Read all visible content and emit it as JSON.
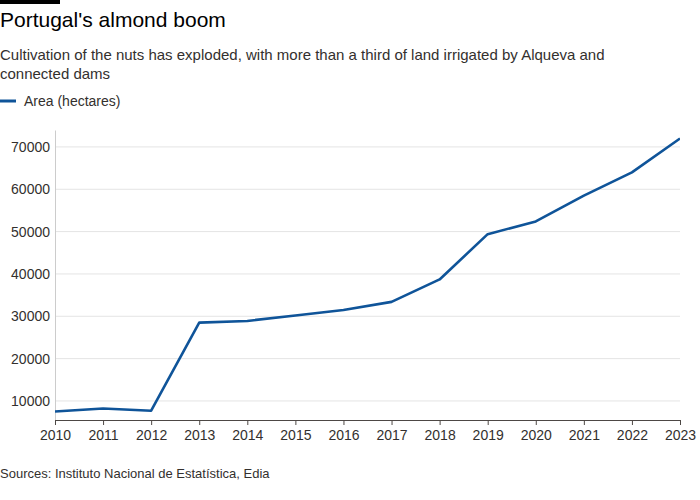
{
  "chart_data": {
    "type": "line",
    "title": "Portugal's almond boom",
    "subtitle": "Cultivation of the nuts has exploded, with more than a third of land irrigated by Alqueva and connected dams",
    "source": "Sources: Instituto Nacional de Estatística, Edia",
    "x": [
      2010,
      2011,
      2012,
      2013,
      2014,
      2015,
      2016,
      2017,
      2018,
      2019,
      2020,
      2021,
      2022,
      2023
    ],
    "series": [
      {
        "name": "Area (hectares)",
        "color": "#0f5499",
        "values": [
          7500,
          8200,
          7700,
          28500,
          28900,
          30200,
          31500,
          33400,
          38700,
          49400,
          52400,
          58500,
          64000,
          72000
        ]
      }
    ],
    "xlim": [
      2010,
      2023
    ],
    "xticks": [
      2010,
      2011,
      2012,
      2013,
      2014,
      2015,
      2016,
      2017,
      2018,
      2019,
      2020,
      2021,
      2022,
      2023
    ],
    "ylim": [
      5500,
      74000
    ],
    "yticks": [
      10000,
      20000,
      30000,
      40000,
      50000,
      60000,
      70000
    ],
    "grid": true,
    "legend": "top-left"
  }
}
